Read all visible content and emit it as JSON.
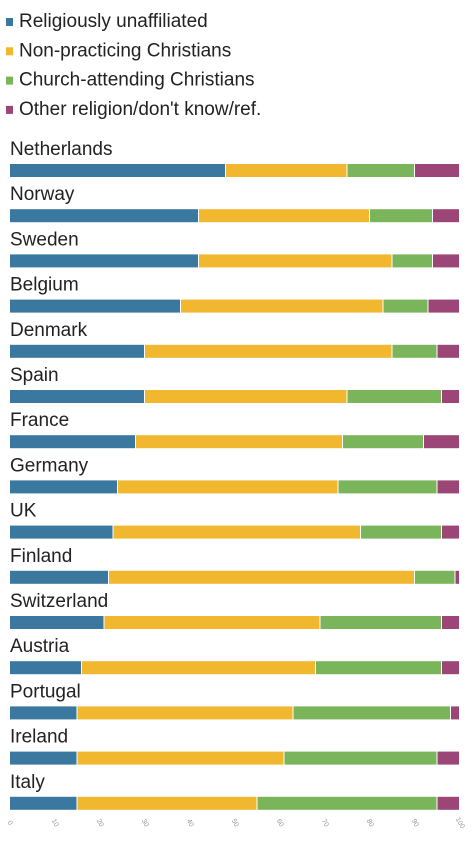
{
  "chart_data": {
    "type": "bar",
    "orientation": "horizontal",
    "stacked": true,
    "categories": [
      "Netherlands",
      "Norway",
      "Sweden",
      "Belgium",
      "Denmark",
      "Spain",
      "France",
      "Germany",
      "UK",
      "Finland",
      "Switzerland",
      "Austria",
      "Portugal",
      "Ireland",
      "Italy"
    ],
    "series": [
      {
        "name": "Religiously unaffiliated",
        "color": "#3a78a0",
        "values": [
          48,
          42,
          42,
          38,
          30,
          30,
          28,
          24,
          23,
          22,
          21,
          16,
          15,
          15,
          15
        ]
      },
      {
        "name": "Non-practicing Christians",
        "color": "#f0b72f",
        "values": [
          27,
          38,
          43,
          45,
          55,
          45,
          46,
          49,
          55,
          68,
          48,
          52,
          48,
          46,
          40
        ]
      },
      {
        "name": "Church-attending Christians",
        "color": "#7ab55c",
        "values": [
          15,
          14,
          9,
          10,
          10,
          21,
          18,
          22,
          18,
          9,
          27,
          28,
          35,
          34,
          40
        ]
      },
      {
        "name": "Other religion/don't know/ref.",
        "color": "#9b4677",
        "values": [
          10,
          6,
          6,
          7,
          5,
          4,
          8,
          5,
          4,
          1,
          4,
          4,
          2,
          5,
          5
        ]
      }
    ],
    "xlim": [
      0,
      100
    ],
    "xticks": [
      0,
      10,
      20,
      30,
      40,
      50,
      60,
      70,
      80,
      90,
      100
    ],
    "legend": "top-left",
    "grid": false
  }
}
